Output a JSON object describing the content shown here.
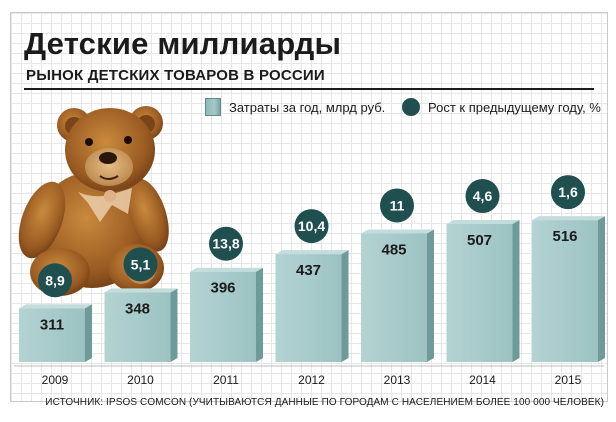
{
  "header": {
    "title": "Детские миллиарды",
    "subtitle": "РЫНОК ДЕТСКИХ ТОВАРОВ В РОССИИ"
  },
  "legend": {
    "bars_label": "Затраты за год, млрд руб.",
    "circles_label": "Рост к предыдущему году, %"
  },
  "source": "ИСТОЧНИК: IPSOS COMCON (УЧИТЫВАЮТСЯ ДАННЫЕ ПО ГОРОДАМ С НАСЕЛЕНИЕМ БОЛЕЕ 100 000 ЧЕЛОВЕК)",
  "colors": {
    "bar_face": "#a6c9c9",
    "bar_side": "#6f9a9a",
    "circle": "#1f4f4f",
    "text_dark": "#1b1b1b"
  },
  "illustration": "teddy-bear",
  "chart_data": {
    "type": "bar",
    "categories": [
      "2009",
      "2010",
      "2011",
      "2012",
      "2013",
      "2014",
      "2015"
    ],
    "series": [
      {
        "name": "Затраты за год, млрд руб.",
        "values": [
          311,
          348,
          396,
          437,
          485,
          507,
          516
        ]
      },
      {
        "name": "Рост к предыдущему году, %",
        "values": [
          8.9,
          5.1,
          13.8,
          10.4,
          11,
          4.6,
          1.6
        ],
        "labels": [
          "8,9",
          "5,1",
          "13,8",
          "10,4",
          "11",
          "4,6",
          "1,6"
        ]
      }
    ],
    "xlabel": "",
    "ylabel": "",
    "ylim": [
      0,
      540
    ],
    "grid": true,
    "legend_position": "top-right"
  }
}
